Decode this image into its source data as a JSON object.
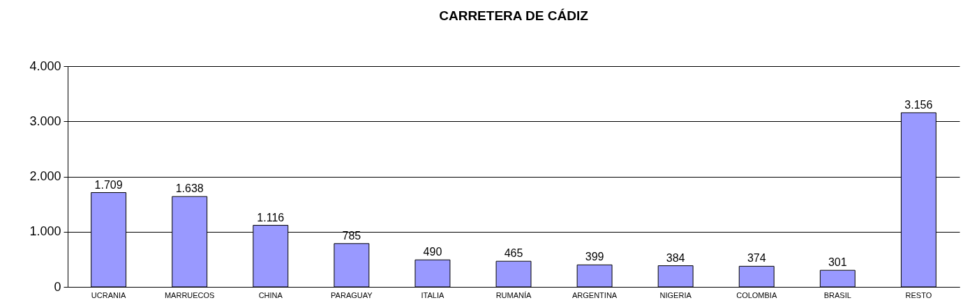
{
  "chart_data": {
    "type": "bar",
    "title": "CARRETERA DE CÁDIZ",
    "categories": [
      "UCRANIA",
      "MARRUECOS",
      "CHINA",
      "PARAGUAY",
      "ITALIA",
      "RUMANÍA",
      "ARGENTINA",
      "NIGERIA",
      "COLOMBIA",
      "BRASIL",
      "RESTO"
    ],
    "values": [
      1709,
      1638,
      1116,
      785,
      490,
      465,
      399,
      384,
      374,
      301,
      3156
    ],
    "value_labels": [
      "1.709",
      "1.638",
      "1.116",
      "785",
      "490",
      "465",
      "399",
      "384",
      "374",
      "301",
      "3.156"
    ],
    "color": "#9999ff",
    "ylim": [
      0,
      4000
    ],
    "yticks": [
      {
        "value": 0,
        "label": "0"
      },
      {
        "value": 1000,
        "label": "1.000"
      },
      {
        "value": 2000,
        "label": "2.000"
      },
      {
        "value": 3000,
        "label": "3.000"
      },
      {
        "value": 4000,
        "label": "4.000"
      }
    ],
    "grid": "y"
  }
}
